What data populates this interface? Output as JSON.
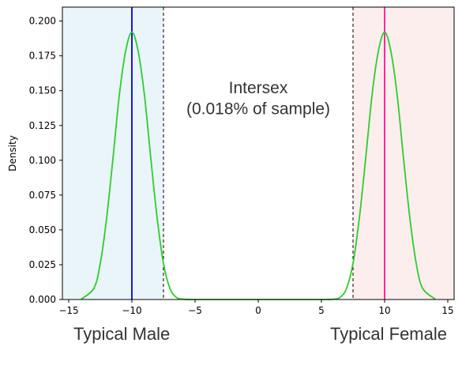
{
  "chart_data": {
    "type": "line",
    "ylabel": "Density",
    "xlim": [
      -15.5,
      15.5
    ],
    "ylim": [
      0,
      0.21
    ],
    "x_ticks": [
      -15,
      -10,
      -5,
      0,
      5,
      10,
      15
    ],
    "x_tick_labels": [
      "−15",
      "−10",
      "−5",
      "0",
      "5",
      "10",
      "15"
    ],
    "y_ticks": [
      0.0,
      0.025,
      0.05,
      0.075,
      0.1,
      0.125,
      0.15,
      0.175,
      0.2
    ],
    "y_tick_labels": [
      "0.000",
      "0.025",
      "0.050",
      "0.075",
      "0.100",
      "0.125",
      "0.150",
      "0.175",
      "0.200"
    ],
    "grid": false,
    "series": [
      {
        "color": "#2ecc2e",
        "x": [
          -14,
          -13,
          -12.5,
          -12,
          -11.5,
          -11,
          -10.5,
          -10,
          -9.5,
          -9,
          -8.5,
          -8,
          -7.5,
          -7,
          -6.5,
          -6,
          -5,
          0,
          5,
          6,
          6.5,
          7,
          7.5,
          8,
          8.5,
          9,
          9.5,
          10,
          10.5,
          11,
          11.5,
          12,
          12.5,
          13,
          14
        ],
        "y": [
          0.0003,
          0.0082,
          0.026,
          0.0584,
          0.1011,
          0.1463,
          0.1781,
          0.192,
          0.1781,
          0.1463,
          0.1011,
          0.0584,
          0.026,
          0.0082,
          0.0017,
          0.0003,
          0.0,
          0.0,
          0.0,
          0.0003,
          0.0017,
          0.0082,
          0.026,
          0.0584,
          0.1011,
          0.1463,
          0.1781,
          0.192,
          0.1781,
          0.1463,
          0.1011,
          0.0584,
          0.026,
          0.0082,
          0.0003
        ]
      }
    ],
    "shaded_regions": [
      {
        "x_start": -15.5,
        "x_end": -7.5,
        "color": "#eaf5f9"
      },
      {
        "x_start": 7.5,
        "x_end": 15.5,
        "color": "#fdeeee"
      }
    ],
    "vertical_lines": [
      {
        "x": -10,
        "color": "#0000cc",
        "style": "solid"
      },
      {
        "x": 10,
        "color": "#ff1493",
        "style": "solid"
      },
      {
        "x": -7.5,
        "color": "#000000",
        "style": "dashed"
      },
      {
        "x": 7.5,
        "color": "#000000",
        "style": "dashed"
      }
    ],
    "annotations": [
      {
        "text": "Intersex",
        "x": 0,
        "y": 0.148
      },
      {
        "text": "(0.018% of sample)",
        "x": 0,
        "y": 0.133
      }
    ],
    "bottom_labels": {
      "left": "Typical Male",
      "right": "Typical Female"
    }
  }
}
